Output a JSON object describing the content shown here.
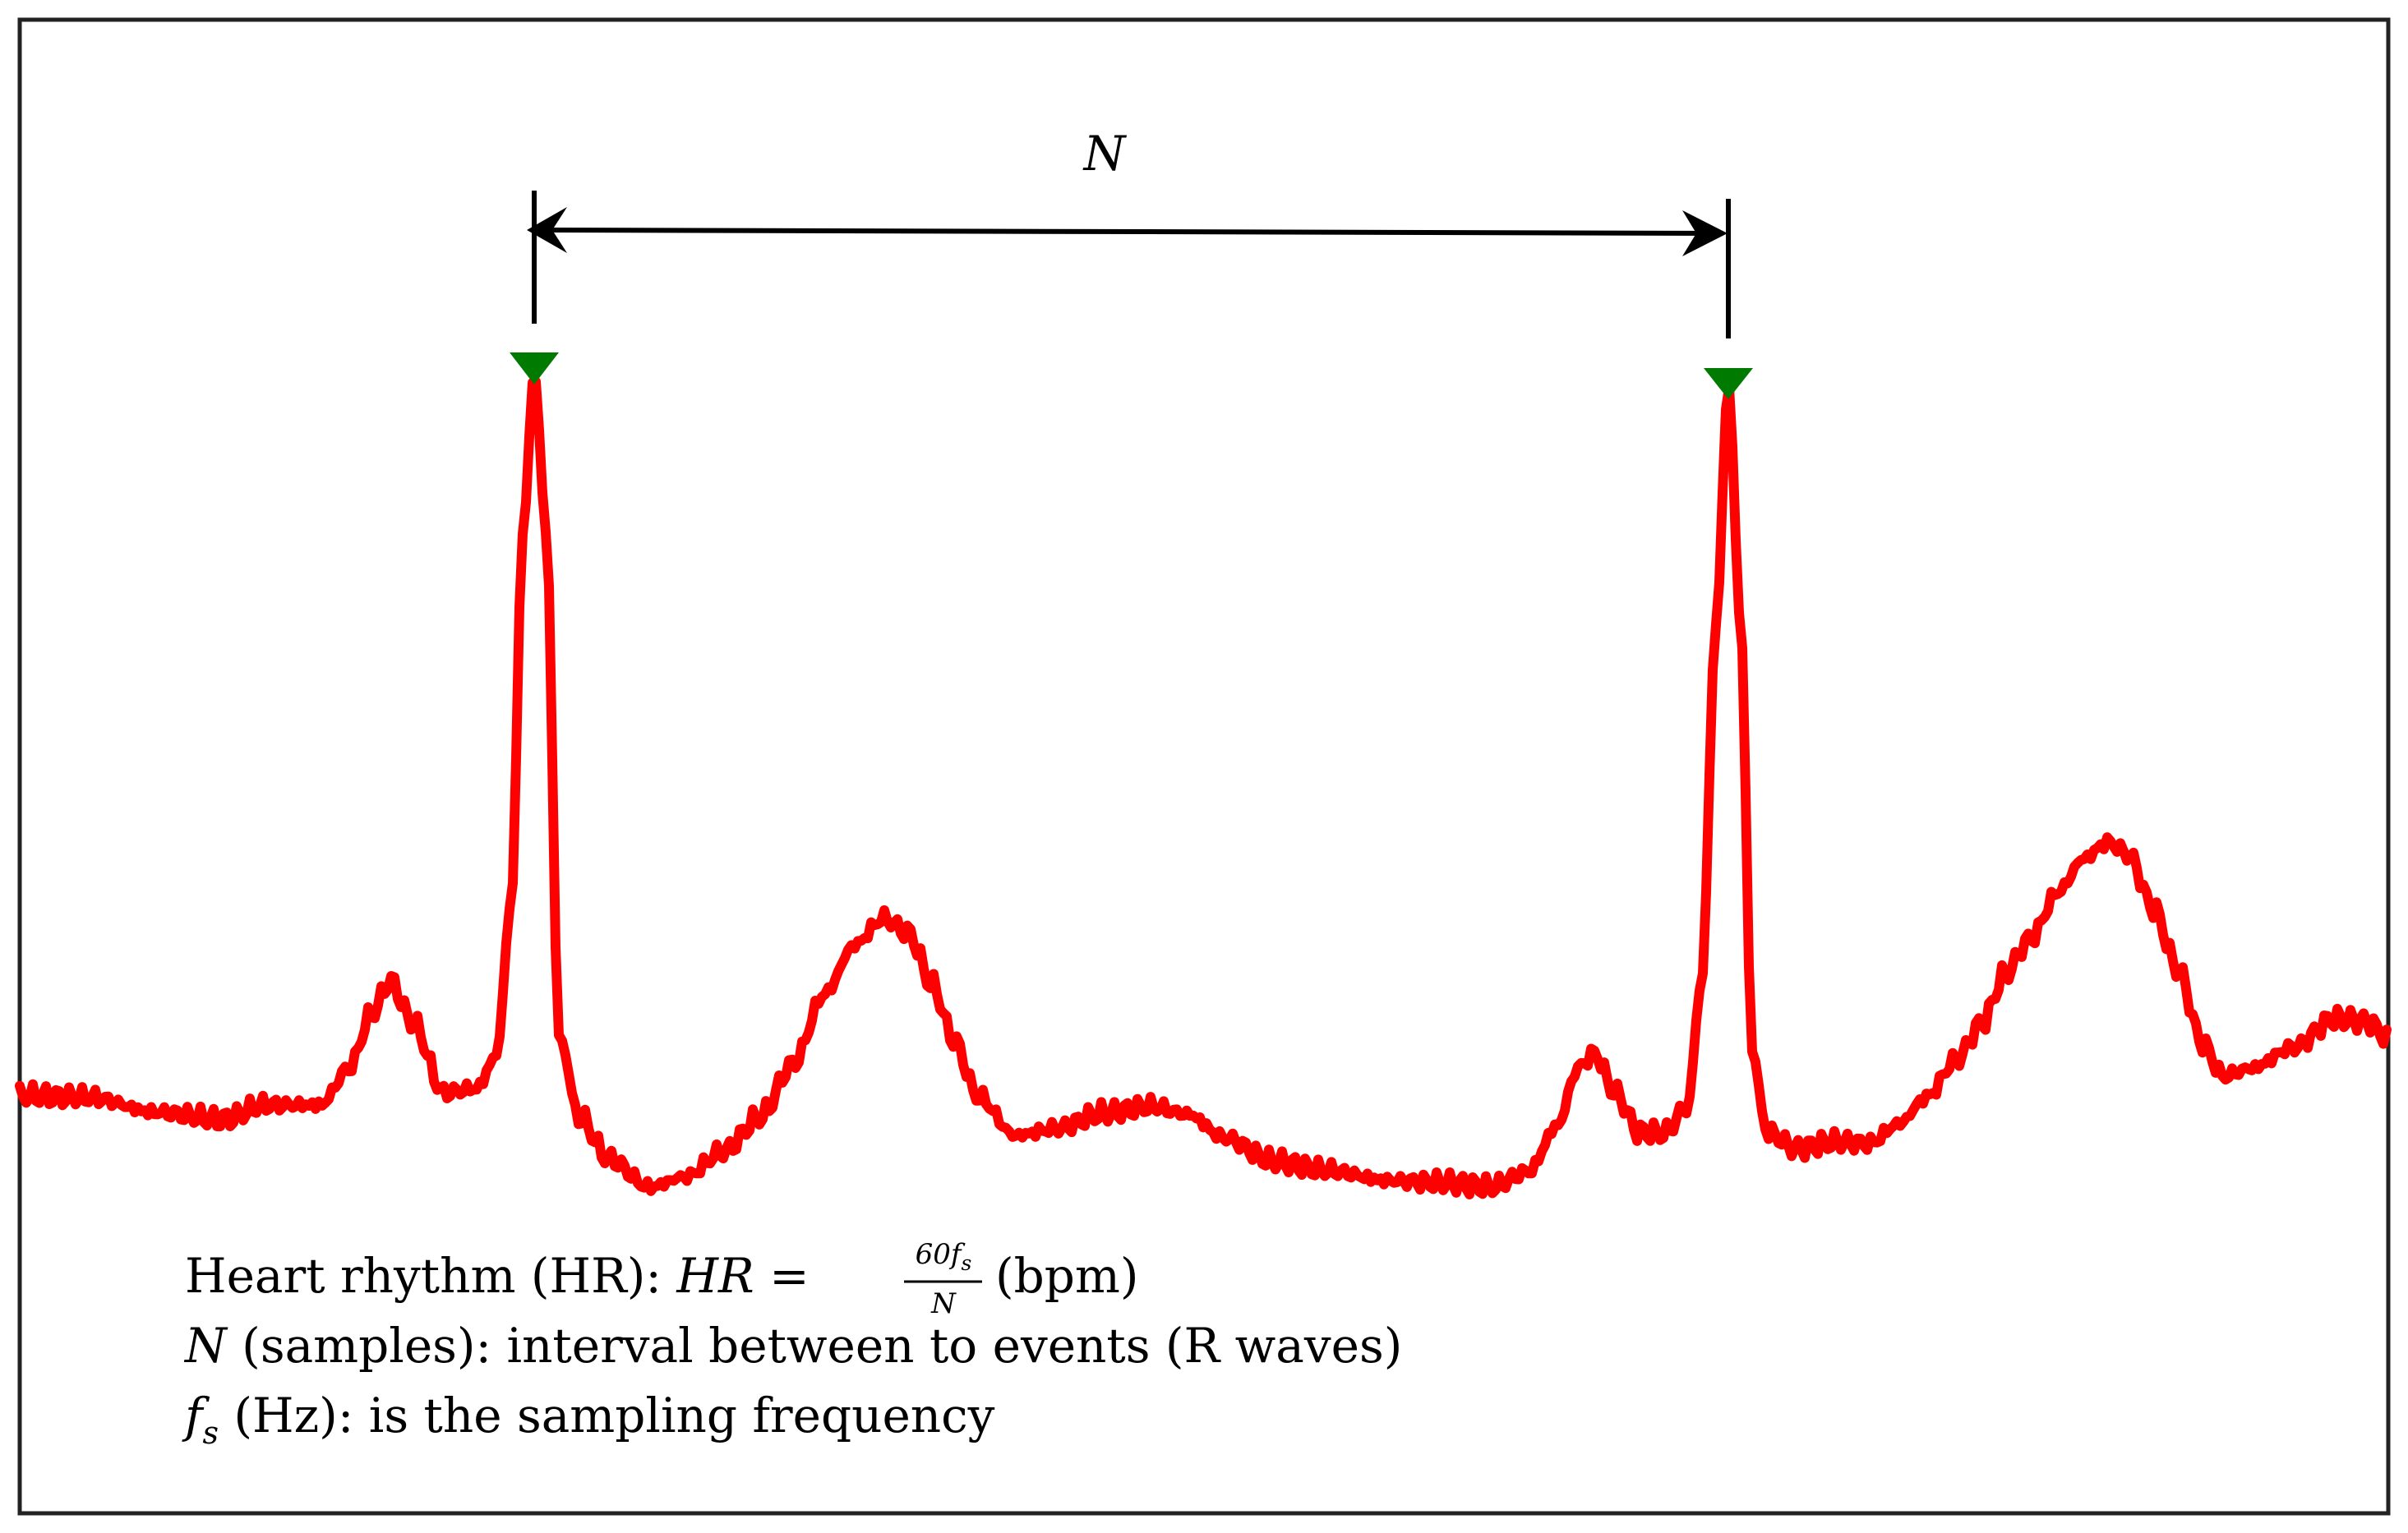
{
  "figure": {
    "interval_label": "N",
    "colors": {
      "signal": "#ff0000",
      "marker": "#007a00",
      "frame": "#222222",
      "annotation": "#000000"
    },
    "markers": {
      "r_peaks": "r-wave-peak-markers",
      "shape": "downward-triangle"
    }
  },
  "annotations": {
    "line1": {
      "prefix": "Heart rhythm (HR): ",
      "hr_symbol": "HR",
      "equals": " = ",
      "fraction_numerator": "60f",
      "fraction_numerator_subscript": "s",
      "fraction_denominator": "N",
      "suffix": " (bpm)"
    },
    "line2": {
      "symbol": "N",
      "text": " (samples): interval between to events (R waves)"
    },
    "line3": {
      "symbol": "f",
      "subscript": "s",
      "text": " (Hz): is the sampling frequency"
    }
  }
}
